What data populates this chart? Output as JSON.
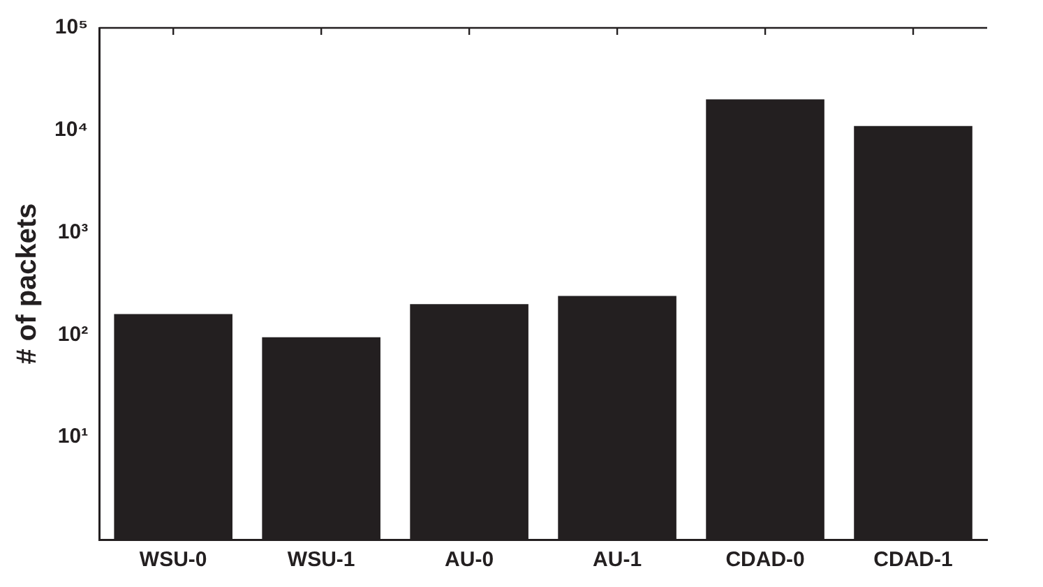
{
  "chart_data": {
    "type": "bar",
    "ylabel": "# of packets",
    "categories": [
      "WSU-0",
      "WSU-1",
      "AU-0",
      "AU-1",
      "CDAD-0",
      "CDAD-1"
    ],
    "values": [
      160,
      95,
      200,
      240,
      20000,
      11000
    ],
    "color": "#231f20",
    "log": true,
    "ylim": [
      1,
      100000
    ],
    "yticks": [
      {
        "value": 1,
        "label": null
      },
      {
        "value": 10,
        "label": "10¹"
      },
      {
        "value": 100,
        "label": "10²"
      },
      {
        "value": 1000,
        "label": "10³"
      },
      {
        "value": 10000,
        "label": "10⁴"
      },
      {
        "value": 100000,
        "label": "10⁵"
      }
    ],
    "grid": false,
    "legend": false
  }
}
